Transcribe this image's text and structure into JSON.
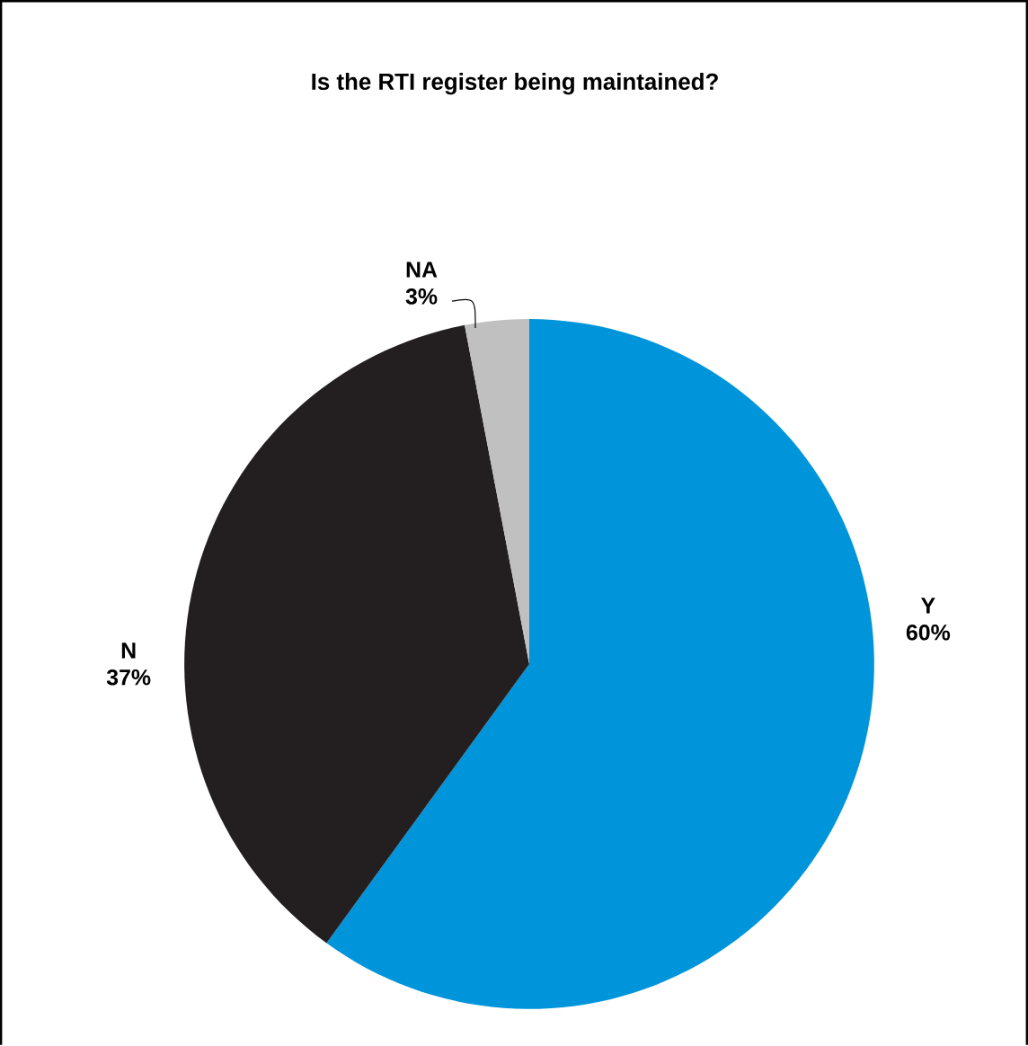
{
  "chart_data": {
    "type": "pie",
    "title": "Is the RTI register being maintained?",
    "categories": [
      "Y",
      "N",
      "NA"
    ],
    "values": [
      60,
      37,
      3
    ],
    "colors": [
      "#0095da",
      "#231f20",
      "#c0c0c0"
    ],
    "value_labels": [
      "60%",
      "37%",
      "3%"
    ]
  }
}
